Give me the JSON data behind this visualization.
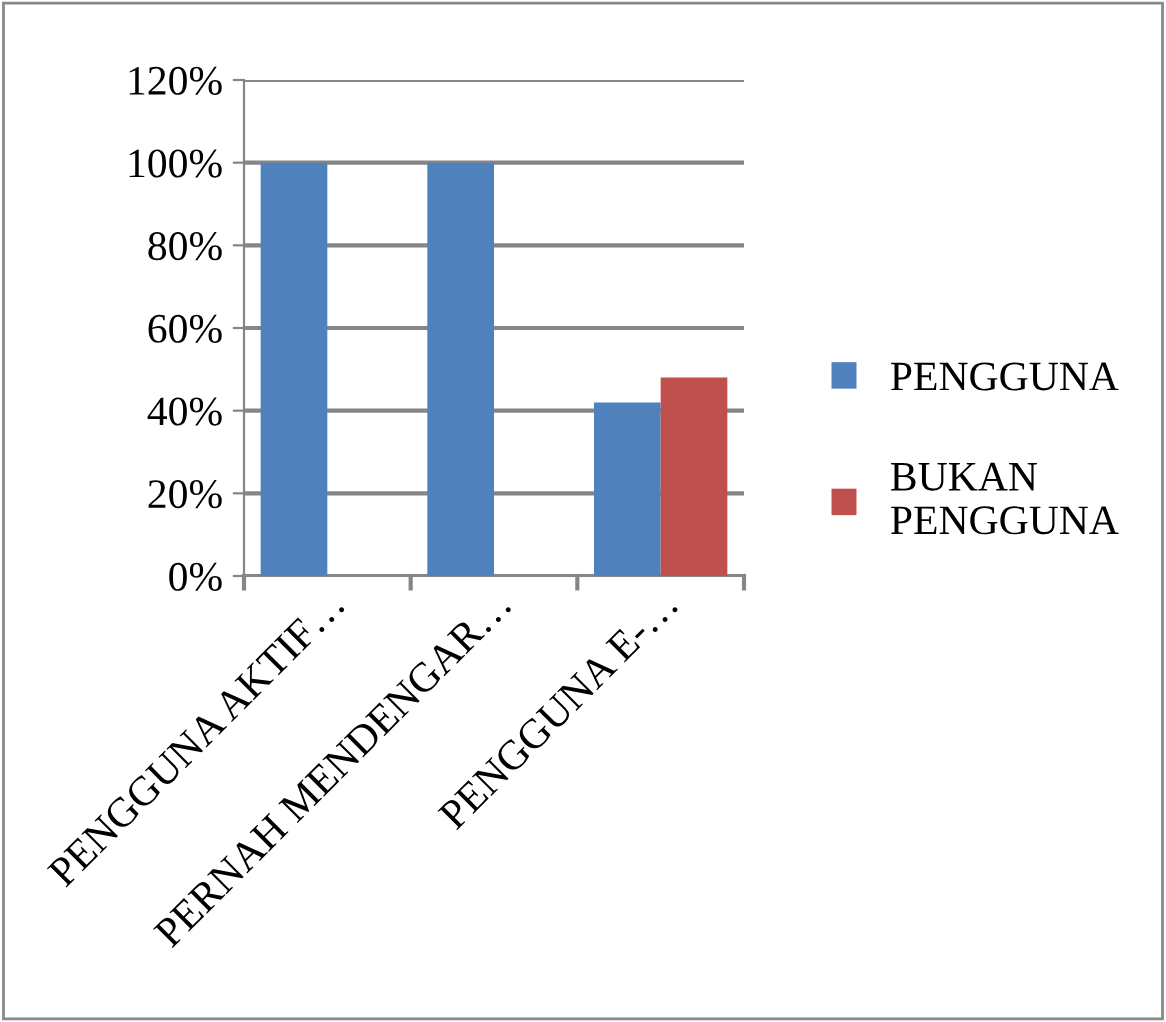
{
  "chart_data": {
    "type": "bar",
    "categories": [
      "PENGGUNA AKTIF…",
      "PERNAH MENDENGAR…",
      "PENGGUNA E-…"
    ],
    "series": [
      {
        "name": "PENGGUNA",
        "color": "#4f81bd",
        "values": [
          100,
          100,
          42
        ]
      },
      {
        "name": "BUKAN\nPENGGUNA",
        "color": "#c0504d",
        "values": [
          null,
          null,
          48
        ]
      }
    ],
    "ylim": [
      0,
      120
    ],
    "yticks": [
      {
        "value": 0,
        "label": "0%"
      },
      {
        "value": 20,
        "label": "20%"
      },
      {
        "value": 40,
        "label": "40%"
      },
      {
        "value": 60,
        "label": "60%"
      },
      {
        "value": 80,
        "label": "80%"
      },
      {
        "value": 100,
        "label": "100%"
      },
      {
        "value": 120,
        "label": "120%"
      }
    ],
    "grid": "y",
    "legend": "right"
  }
}
